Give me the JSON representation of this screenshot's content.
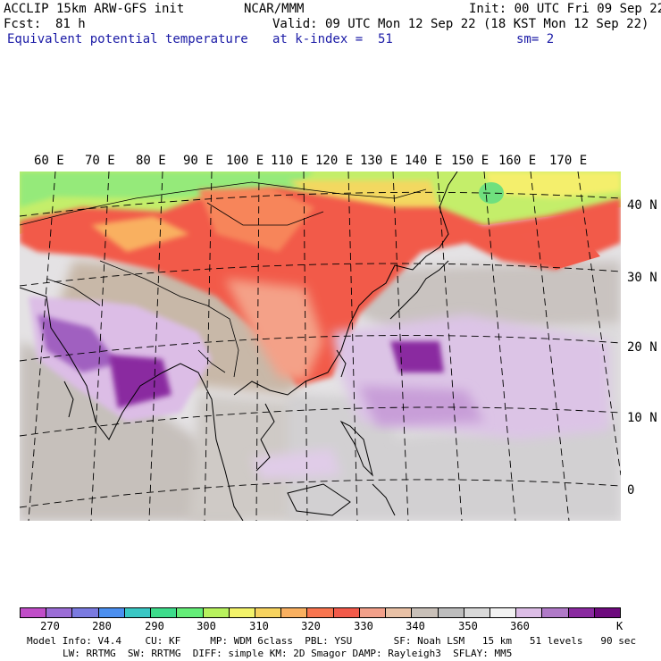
{
  "header": {
    "model_line": "ACCLIP 15km ARW-GFS init",
    "org": "NCAR/MMM",
    "init": "Init: 00 UTC Fri 09 Sep 22",
    "fcst_label": "Fcst:",
    "fcst_value": "81 h",
    "valid": "Valid: 09 UTC Mon 12 Sep 22 (18 KST Mon 12 Sep 22)",
    "field": "Equivalent potential temperature",
    "level": "at k-index =  51",
    "smoothing": "sm= 2"
  },
  "map": {
    "lon_labels": [
      "60 E",
      "70 E",
      "80 E",
      "90 E",
      "100 E",
      "110 E",
      "120 E",
      "130 E",
      "140 E",
      "150 E",
      "160 E",
      "170 E"
    ],
    "lat_labels": [
      "40 N",
      "30 N",
      "20 N",
      "10 N",
      "0"
    ]
  },
  "colorbar": {
    "colors": [
      "#c04dc8",
      "#9b6dd6",
      "#7a7ae0",
      "#4b8ff0",
      "#39c7c4",
      "#3ddc8b",
      "#64ee78",
      "#b8f25e",
      "#f3f36a",
      "#f7d35f",
      "#f9b060",
      "#f9754f",
      "#f25a4a",
      "#f2a08a",
      "#e9c1a6",
      "#c9c0b8",
      "#bdbdbd",
      "#d9d9d9",
      "#f2f2f2",
      "#dcbde6",
      "#b07ac8",
      "#8a2aa0",
      "#6e0a7e"
    ],
    "tick_labels": [
      "270",
      "280",
      "290",
      "300",
      "310",
      "320",
      "330",
      "340",
      "350",
      "360"
    ],
    "unit": "K"
  },
  "footer": {
    "line1": "Model Info: V4.4    CU: KF     MP: WDM 6class  PBL: YSU       SF: Noah LSM   15 km   51 levels   90 sec",
    "line2": "LW: RRTMG  SW: RRTMG  DIFF: simple KM: 2D Smagor DAMP: Rayleigh3  SFLAY: MM5"
  }
}
